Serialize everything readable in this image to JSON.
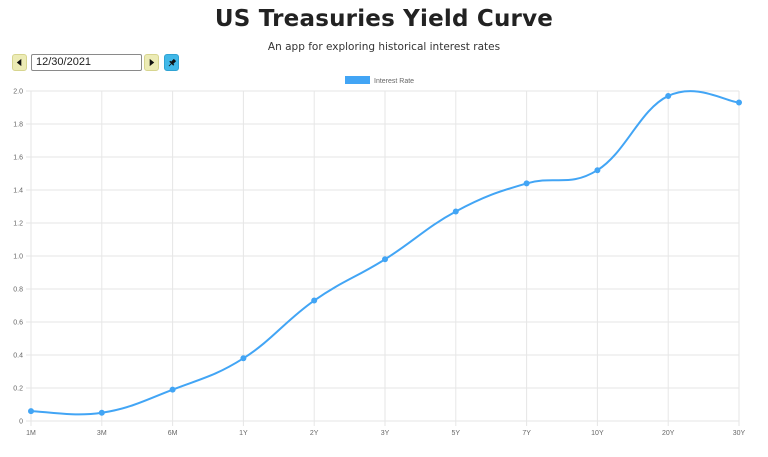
{
  "header": {
    "title": "US Treasuries Yield Curve",
    "subtitle": "An app for exploring historical interest rates"
  },
  "toolbar": {
    "date_value": "12/30/2021",
    "prev_icon": "caret-left-icon",
    "next_icon": "caret-right-icon",
    "pin_icon": "pin-icon"
  },
  "colors": {
    "series": "#42a5f5",
    "nav_button": "#ecebb5",
    "pin_button": "#41b8e8",
    "grid": "#e6e6e6"
  },
  "chart_data": {
    "type": "line",
    "categories": [
      "1M",
      "3M",
      "6M",
      "1Y",
      "2Y",
      "3Y",
      "5Y",
      "7Y",
      "10Y",
      "20Y",
      "30Y"
    ],
    "series": [
      {
        "name": "Interest Rate",
        "values": [
          0.06,
          0.05,
          0.19,
          0.38,
          0.73,
          0.98,
          1.27,
          1.44,
          1.52,
          1.97,
          1.93
        ]
      }
    ],
    "yticks": [
      "0",
      "0.2",
      "0.4",
      "0.6",
      "0.8",
      "1.0",
      "1.2",
      "1.4",
      "1.6",
      "1.8",
      "2.0"
    ],
    "ylim": [
      0,
      2.0
    ],
    "grid": true,
    "legend_position": "top-center",
    "smooth": true
  }
}
